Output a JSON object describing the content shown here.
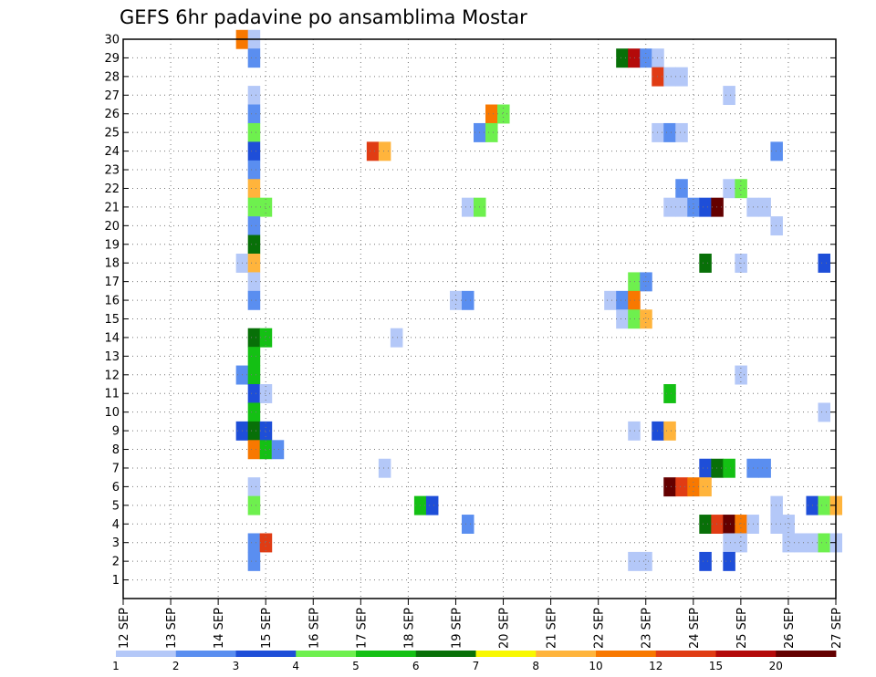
{
  "chart_data": {
    "type": "heatmap",
    "title": "GEFS 6hr padavine po ansamblima Mostar",
    "xlabel": "",
    "ylabel": "",
    "x_range": [
      0,
      15
    ],
    "y_range": [
      0,
      30
    ],
    "x_tick_labels": [
      "12 SEP",
      "13 SEP",
      "14 SEP",
      "15 SEP",
      "16 SEP",
      "17 SEP",
      "18 SEP",
      "19 SEP",
      "20 SEP",
      "21 SEP",
      "22 SEP",
      "23 SEP",
      "24 SEP",
      "25 SEP",
      "26 SEP",
      "27 SEP"
    ],
    "y_tick_labels": [
      "1",
      "2",
      "3",
      "4",
      "5",
      "6",
      "7",
      "8",
      "9",
      "10",
      "11",
      "12",
      "13",
      "14",
      "15",
      "16",
      "17",
      "18",
      "19",
      "20",
      "21",
      "22",
      "23",
      "24",
      "25",
      "26",
      "27",
      "28",
      "29",
      "30"
    ],
    "grid": true,
    "legend": "bottom",
    "colorbar": {
      "colors": [
        "#b4c8f8",
        "#5a8ef0",
        "#1e4ed8",
        "#6ef04e",
        "#14c014",
        "#087008",
        "#f8f800",
        "#ffb43c",
        "#f87800",
        "#e03c14",
        "#b40a0a",
        "#640000"
      ],
      "labels": [
        "1",
        "2",
        "3",
        "4",
        "5",
        "6",
        "7",
        "8",
        "10",
        "12",
        "15",
        "20"
      ]
    },
    "cells": [
      {
        "member": 30,
        "day": 2.5,
        "c": 8
      },
      {
        "member": 30,
        "day": 2.75,
        "c": 0
      },
      {
        "member": 29,
        "day": 2.75,
        "c": 1
      },
      {
        "member": 29,
        "day": 10.5,
        "c": 5
      },
      {
        "member": 29,
        "day": 10.75,
        "c": 10
      },
      {
        "member": 29,
        "day": 11.0,
        "c": 1
      },
      {
        "member": 29,
        "day": 11.25,
        "c": 0
      },
      {
        "member": 28,
        "day": 11.25,
        "c": 9
      },
      {
        "member": 28,
        "day": 11.5,
        "c": 0
      },
      {
        "member": 28,
        "day": 11.75,
        "c": 0
      },
      {
        "member": 27,
        "day": 2.75,
        "c": 0
      },
      {
        "member": 27,
        "day": 12.75,
        "c": 0
      },
      {
        "member": 26,
        "day": 2.75,
        "c": 1
      },
      {
        "member": 26,
        "day": 7.75,
        "c": 8
      },
      {
        "member": 26,
        "day": 8.0,
        "c": 3
      },
      {
        "member": 25,
        "day": 2.75,
        "c": 3
      },
      {
        "member": 25,
        "day": 7.5,
        "c": 1
      },
      {
        "member": 25,
        "day": 7.75,
        "c": 3
      },
      {
        "member": 25,
        "day": 11.25,
        "c": 0
      },
      {
        "member": 25,
        "day": 11.5,
        "c": 1
      },
      {
        "member": 25,
        "day": 11.75,
        "c": 0
      },
      {
        "member": 24,
        "day": 2.75,
        "c": 2
      },
      {
        "member": 24,
        "day": 5.25,
        "c": 9
      },
      {
        "member": 24,
        "day": 5.5,
        "c": 7
      },
      {
        "member": 24,
        "day": 13.75,
        "c": 1
      },
      {
        "member": 23,
        "day": 2.75,
        "c": 1
      },
      {
        "member": 22,
        "day": 2.75,
        "c": 7
      },
      {
        "member": 22,
        "day": 11.75,
        "c": 1
      },
      {
        "member": 22,
        "day": 12.75,
        "c": 0
      },
      {
        "member": 22,
        "day": 13.0,
        "c": 3
      },
      {
        "member": 21,
        "day": 2.75,
        "c": 3
      },
      {
        "member": 21,
        "day": 3.0,
        "c": 3
      },
      {
        "member": 21,
        "day": 7.25,
        "c": 0
      },
      {
        "member": 21,
        "day": 7.5,
        "c": 3
      },
      {
        "member": 21,
        "day": 11.5,
        "c": 0
      },
      {
        "member": 21,
        "day": 11.75,
        "c": 0
      },
      {
        "member": 21,
        "day": 12.0,
        "c": 1
      },
      {
        "member": 21,
        "day": 12.25,
        "c": 2
      },
      {
        "member": 21,
        "day": 12.5,
        "c": 11
      },
      {
        "member": 21,
        "day": 13.25,
        "c": 0
      },
      {
        "member": 21,
        "day": 13.5,
        "c": 0
      },
      {
        "member": 20,
        "day": 2.75,
        "c": 1
      },
      {
        "member": 20,
        "day": 13.75,
        "c": 0
      },
      {
        "member": 19,
        "day": 2.75,
        "c": 5
      },
      {
        "member": 18,
        "day": 2.5,
        "c": 0
      },
      {
        "member": 18,
        "day": 2.75,
        "c": 7
      },
      {
        "member": 18,
        "day": 12.25,
        "c": 5
      },
      {
        "member": 18,
        "day": 13.0,
        "c": 0
      },
      {
        "member": 18,
        "day": 14.75,
        "c": 2
      },
      {
        "member": 17,
        "day": 2.75,
        "c": 0
      },
      {
        "member": 17,
        "day": 10.75,
        "c": 3
      },
      {
        "member": 17,
        "day": 11.0,
        "c": 1
      },
      {
        "member": 16,
        "day": 2.75,
        "c": 1
      },
      {
        "member": 16,
        "day": 7.0,
        "c": 0
      },
      {
        "member": 16,
        "day": 7.25,
        "c": 1
      },
      {
        "member": 16,
        "day": 10.25,
        "c": 0
      },
      {
        "member": 16,
        "day": 10.5,
        "c": 1
      },
      {
        "member": 16,
        "day": 10.75,
        "c": 8
      },
      {
        "member": 15,
        "day": 10.5,
        "c": 0
      },
      {
        "member": 15,
        "day": 10.75,
        "c": 3
      },
      {
        "member": 15,
        "day": 11.0,
        "c": 7
      },
      {
        "member": 14,
        "day": 2.75,
        "c": 5
      },
      {
        "member": 14,
        "day": 3.0,
        "c": 4
      },
      {
        "member": 14,
        "day": 5.75,
        "c": 0
      },
      {
        "member": 13,
        "day": 2.75,
        "c": 4
      },
      {
        "member": 12,
        "day": 2.5,
        "c": 1
      },
      {
        "member": 12,
        "day": 2.75,
        "c": 4
      },
      {
        "member": 12,
        "day": 13.0,
        "c": 0
      },
      {
        "member": 11,
        "day": 2.75,
        "c": 2
      },
      {
        "member": 11,
        "day": 3.0,
        "c": 0
      },
      {
        "member": 11,
        "day": 11.5,
        "c": 4
      },
      {
        "member": 10,
        "day": 2.75,
        "c": 4
      },
      {
        "member": 10,
        "day": 14.75,
        "c": 0
      },
      {
        "member": 9,
        "day": 2.5,
        "c": 2
      },
      {
        "member": 9,
        "day": 2.75,
        "c": 5
      },
      {
        "member": 9,
        "day": 3.0,
        "c": 2
      },
      {
        "member": 9,
        "day": 10.75,
        "c": 0
      },
      {
        "member": 9,
        "day": 11.25,
        "c": 2
      },
      {
        "member": 9,
        "day": 11.5,
        "c": 7
      },
      {
        "member": 8,
        "day": 2.75,
        "c": 8
      },
      {
        "member": 8,
        "day": 3.0,
        "c": 4
      },
      {
        "member": 8,
        "day": 3.25,
        "c": 1
      },
      {
        "member": 7,
        "day": 5.5,
        "c": 0
      },
      {
        "member": 7,
        "day": 12.25,
        "c": 2
      },
      {
        "member": 7,
        "day": 12.5,
        "c": 5
      },
      {
        "member": 7,
        "day": 12.75,
        "c": 4
      },
      {
        "member": 7,
        "day": 13.25,
        "c": 1
      },
      {
        "member": 7,
        "day": 13.5,
        "c": 1
      },
      {
        "member": 6,
        "day": 2.75,
        "c": 0
      },
      {
        "member": 6,
        "day": 11.5,
        "c": 11
      },
      {
        "member": 6,
        "day": 11.75,
        "c": 9
      },
      {
        "member": 6,
        "day": 12.0,
        "c": 8
      },
      {
        "member": 6,
        "day": 12.25,
        "c": 7
      },
      {
        "member": 5,
        "day": 2.75,
        "c": 3
      },
      {
        "member": 5,
        "day": 6.25,
        "c": 4
      },
      {
        "member": 5,
        "day": 6.5,
        "c": 2
      },
      {
        "member": 5,
        "day": 13.75,
        "c": 0
      },
      {
        "member": 5,
        "day": 14.5,
        "c": 2
      },
      {
        "member": 5,
        "day": 14.75,
        "c": 3
      },
      {
        "member": 5,
        "day": 15.0,
        "c": 7
      },
      {
        "member": 4,
        "day": 7.25,
        "c": 1
      },
      {
        "member": 4,
        "day": 12.25,
        "c": 5
      },
      {
        "member": 4,
        "day": 12.5,
        "c": 9
      },
      {
        "member": 4,
        "day": 12.75,
        "c": 11
      },
      {
        "member": 4,
        "day": 13.0,
        "c": 8
      },
      {
        "member": 4,
        "day": 13.25,
        "c": 0
      },
      {
        "member": 4,
        "day": 13.75,
        "c": 0
      },
      {
        "member": 4,
        "day": 14.0,
        "c": 0
      },
      {
        "member": 3,
        "day": 2.75,
        "c": 1
      },
      {
        "member": 3,
        "day": 3.0,
        "c": 9
      },
      {
        "member": 3,
        "day": 12.75,
        "c": 0
      },
      {
        "member": 3,
        "day": 13.0,
        "c": 0
      },
      {
        "member": 3,
        "day": 14.0,
        "c": 0
      },
      {
        "member": 3,
        "day": 14.25,
        "c": 0
      },
      {
        "member": 3,
        "day": 14.5,
        "c": 0
      },
      {
        "member": 3,
        "day": 14.75,
        "c": 3
      },
      {
        "member": 3,
        "day": 15.0,
        "c": 0
      },
      {
        "member": 2,
        "day": 2.75,
        "c": 1
      },
      {
        "member": 2,
        "day": 10.75,
        "c": 0
      },
      {
        "member": 2,
        "day": 11.0,
        "c": 0
      },
      {
        "member": 2,
        "day": 12.25,
        "c": 2
      },
      {
        "member": 2,
        "day": 12.75,
        "c": 2
      }
    ]
  }
}
